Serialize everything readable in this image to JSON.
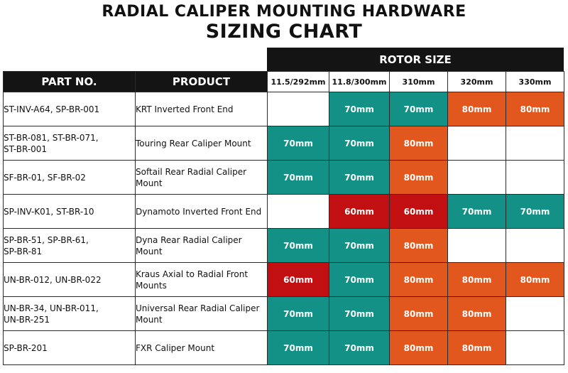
{
  "title": {
    "line1": "RADIAL CALIPER MOUNTING HARDWARE",
    "line2": "SIZING CHART"
  },
  "colors": {
    "teal": "#139186",
    "orange": "#e2571d",
    "red": "#c20f12",
    "header": "#141414"
  },
  "table": {
    "group_header": "ROTOR SIZE",
    "part_header": "PART NO.",
    "product_header": "PRODUCT",
    "rotor_sizes": [
      "11.5/292mm",
      "11.8/300mm",
      "310mm",
      "320mm",
      "330mm"
    ],
    "rows": [
      {
        "part": [
          "ST-INV-A64, SP-BR-001"
        ],
        "product": "KRT Inverted Front End",
        "cells": [
          {
            "text": "",
            "color": "empty"
          },
          {
            "text": "70mm",
            "color": "teal"
          },
          {
            "text": "70mm",
            "color": "teal"
          },
          {
            "text": "80mm",
            "color": "orange"
          },
          {
            "text": "80mm",
            "color": "orange"
          }
        ]
      },
      {
        "part": [
          "ST-BR-081, ST-BR-071,",
          "ST-BR-001"
        ],
        "product": "Touring Rear Caliper Mount",
        "cells": [
          {
            "text": "70mm",
            "color": "teal"
          },
          {
            "text": "70mm",
            "color": "teal"
          },
          {
            "text": "80mm",
            "color": "orange"
          },
          {
            "text": "",
            "color": "empty"
          },
          {
            "text": "",
            "color": "empty"
          }
        ]
      },
      {
        "part": [
          "SF-BR-01, SF-BR-02"
        ],
        "product": "Softail Rear Radial Caliper Mount",
        "cells": [
          {
            "text": "70mm",
            "color": "teal"
          },
          {
            "text": "70mm",
            "color": "teal"
          },
          {
            "text": "80mm",
            "color": "orange"
          },
          {
            "text": "",
            "color": "empty"
          },
          {
            "text": "",
            "color": "empty"
          }
        ]
      },
      {
        "part": [
          "SP-INV-K01, ST-BR-10"
        ],
        "product": "Dynamoto Inverted Front End",
        "cells": [
          {
            "text": "",
            "color": "empty"
          },
          {
            "text": "60mm",
            "color": "red"
          },
          {
            "text": "60mm",
            "color": "red"
          },
          {
            "text": "70mm",
            "color": "teal"
          },
          {
            "text": "70mm",
            "color": "teal"
          }
        ]
      },
      {
        "part": [
          "SP-BR-51, SP-BR-61,",
          "SP-BR-81"
        ],
        "product": "Dyna Rear Radial Caliper Mount",
        "cells": [
          {
            "text": "70mm",
            "color": "teal"
          },
          {
            "text": "70mm",
            "color": "teal"
          },
          {
            "text": "80mm",
            "color": "orange"
          },
          {
            "text": "",
            "color": "empty"
          },
          {
            "text": "",
            "color": "empty"
          }
        ]
      },
      {
        "part": [
          "UN-BR-012, UN-BR-022"
        ],
        "product": "Kraus Axial to Radial Front Mounts",
        "cells": [
          {
            "text": "60mm",
            "color": "red"
          },
          {
            "text": "70mm",
            "color": "teal"
          },
          {
            "text": "80mm",
            "color": "orange"
          },
          {
            "text": "80mm",
            "color": "orange"
          },
          {
            "text": "80mm",
            "color": "orange"
          }
        ]
      },
      {
        "part": [
          "UN-BR-34, UN-BR-011,",
          "UN-BR-251"
        ],
        "product": "Universal Rear Radial Caliper Mount",
        "cells": [
          {
            "text": "70mm",
            "color": "teal"
          },
          {
            "text": "70mm",
            "color": "teal"
          },
          {
            "text": "80mm",
            "color": "orange"
          },
          {
            "text": "80mm",
            "color": "orange"
          },
          {
            "text": "",
            "color": "empty"
          }
        ]
      },
      {
        "part": [
          "SP-BR-201"
        ],
        "product": "FXR Caliper Mount",
        "cells": [
          {
            "text": "70mm",
            "color": "teal"
          },
          {
            "text": "70mm",
            "color": "teal"
          },
          {
            "text": "80mm",
            "color": "orange"
          },
          {
            "text": "80mm",
            "color": "orange"
          },
          {
            "text": "",
            "color": "empty"
          }
        ]
      }
    ]
  }
}
